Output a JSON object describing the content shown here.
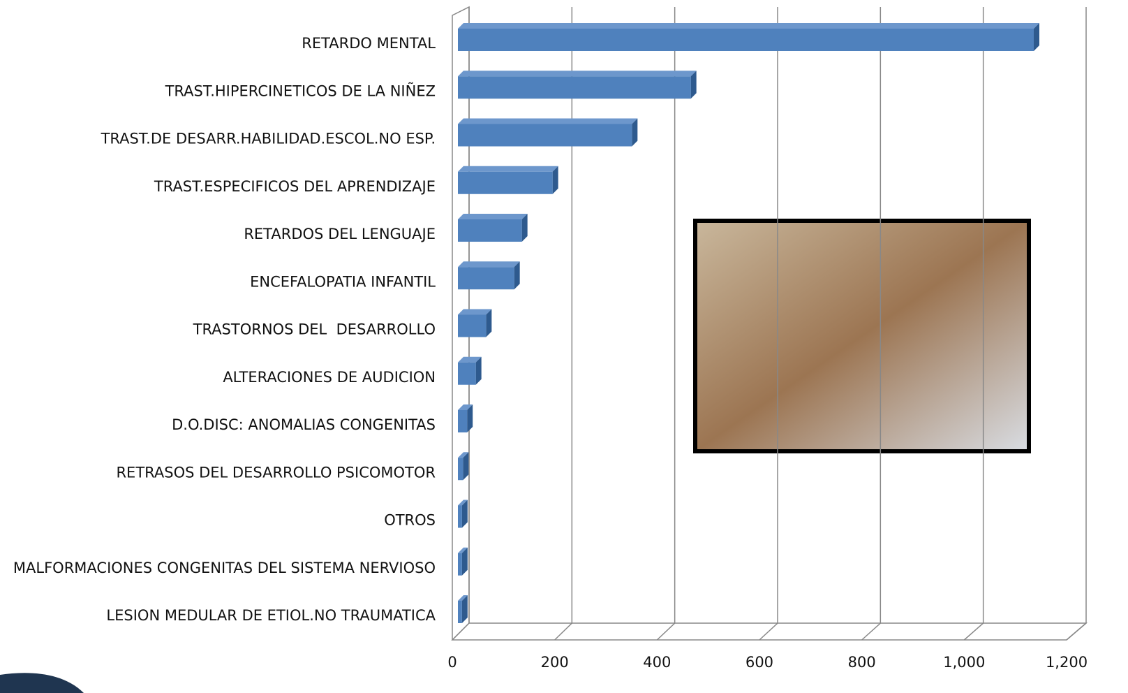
{
  "chart_data": {
    "type": "bar3d_horizontal",
    "categories": [
      "RETARDO MENTAL",
      "TRAST.HIPERCINETICOS DE LA NIÑEZ",
      "TRAST.DE DESARR.HABILIDAD.ESCOL.NO ESP.",
      "TRAST.ESPECIFICOS DEL APRENDIZAJE",
      "RETARDOS DEL LENGUAJE",
      "ENCEFALOPATIA INFANTIL",
      "TRASTORNOS DEL  DESARROLLO",
      "ALTERACIONES DE AUDICION",
      "D.O.DISC: ANOMALIAS CONGENITAS",
      "RETRASOS DEL DESARROLLO PSICOMOTOR",
      "OTROS",
      "MALFORMACIONES CONGENITAS DEL SISTEMA NERVIOSO",
      "LESION MEDULAR DE ETIOL.NO TRAUMATICA"
    ],
    "values": [
      1125,
      455,
      340,
      185,
      125,
      110,
      55,
      35,
      18,
      10,
      8,
      8,
      8
    ],
    "color": "#4f81bd",
    "xlim": [
      0,
      1200
    ],
    "xticks": [
      0,
      200,
      400,
      600,
      800,
      {
        "value": 1000,
        "label": "1,000"
      },
      {
        "value": 1200,
        "label": "1,200"
      }
    ],
    "grid": true
  }
}
